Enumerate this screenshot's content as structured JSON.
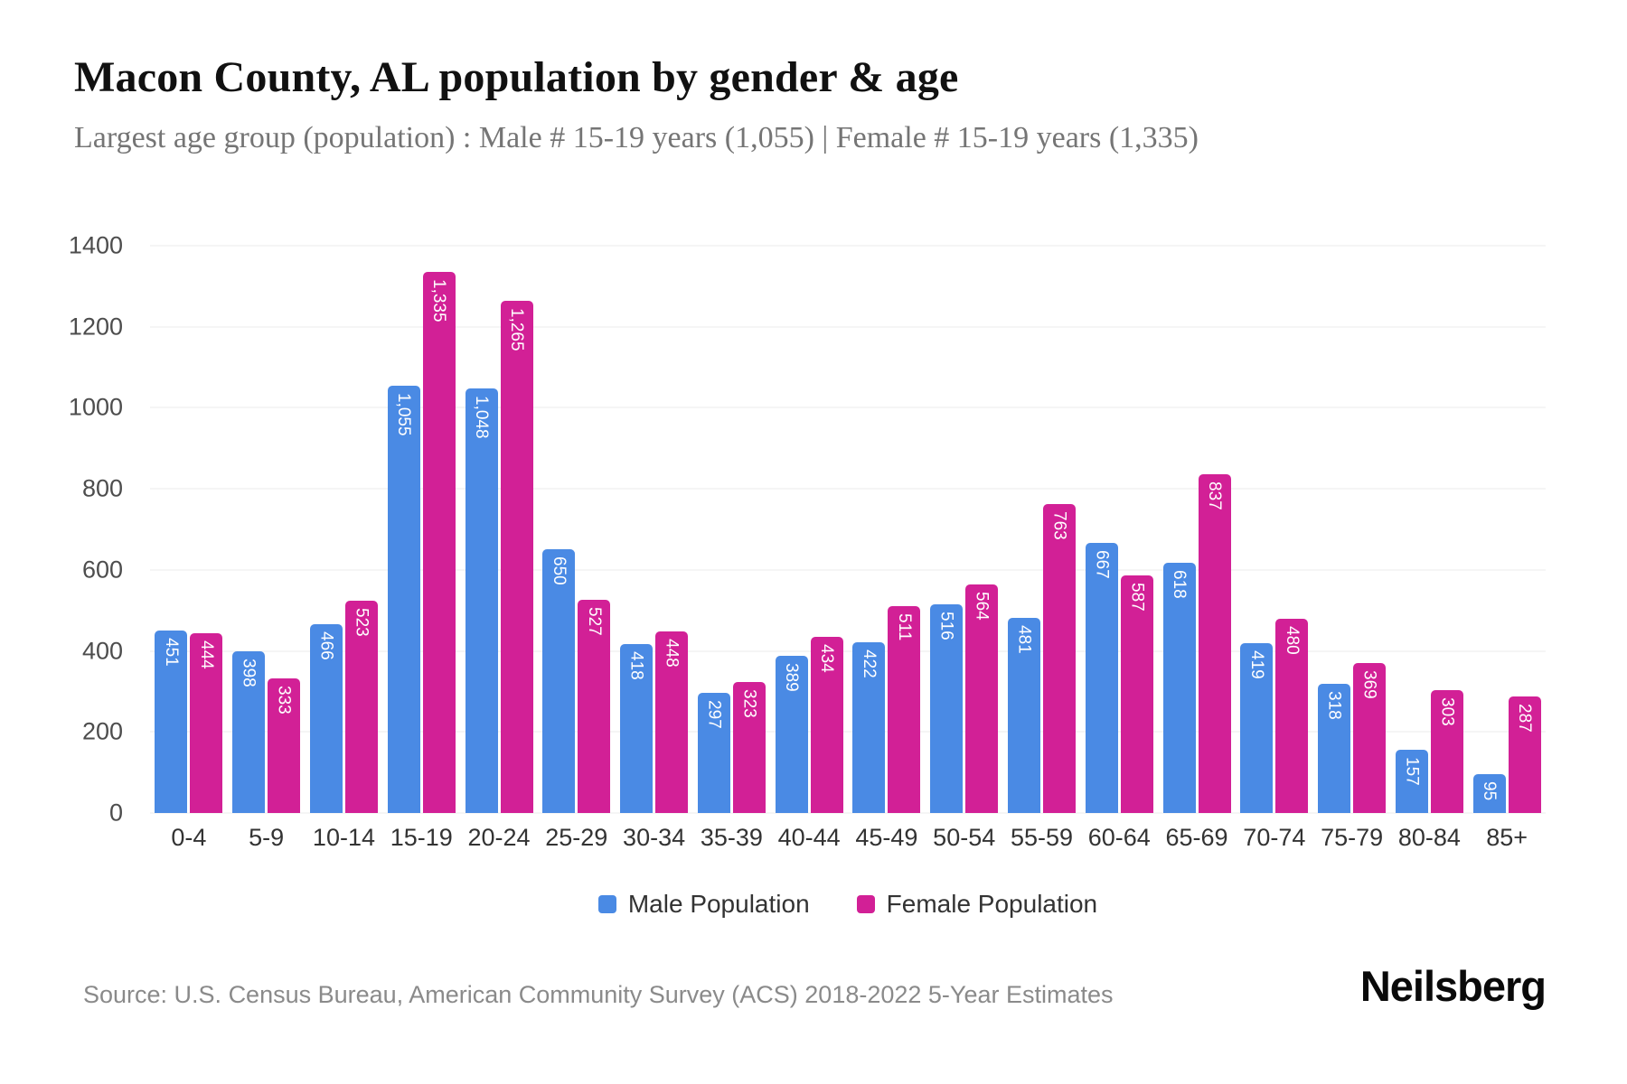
{
  "title": "Macon County, AL population by gender & age",
  "subtitle": "Largest age group (population) : Male # 15-19 years (1,055) | Female # 15-19 years (1,335)",
  "source": "Source: U.S. Census Bureau, American Community Survey (ACS) 2018-2022 5-Year Estimates",
  "brand": "Neilsberg",
  "chart_data": {
    "type": "bar",
    "title": "Macon County, AL population by gender & age",
    "categories": [
      "0-4",
      "5-9",
      "10-14",
      "15-19",
      "20-24",
      "25-29",
      "30-34",
      "35-39",
      "40-44",
      "45-49",
      "50-54",
      "55-59",
      "60-64",
      "65-69",
      "70-74",
      "75-79",
      "80-84",
      "85+"
    ],
    "series": [
      {
        "name": "Male Population",
        "color": "#4a8ae4",
        "values": [
          451,
          398,
          466,
          1055,
          1048,
          650,
          418,
          297,
          389,
          422,
          516,
          481,
          667,
          618,
          419,
          318,
          157,
          95
        ]
      },
      {
        "name": "Female Population",
        "color": "#d22096",
        "values": [
          444,
          333,
          523,
          1335,
          1265,
          527,
          448,
          323,
          434,
          511,
          564,
          763,
          587,
          837,
          480,
          369,
          303,
          287
        ]
      }
    ],
    "xlabel": "",
    "ylabel": "",
    "ylim": [
      0,
      1400
    ],
    "yticks": [
      0,
      200,
      400,
      600,
      800,
      1000,
      1200,
      1400
    ],
    "grid": true,
    "legend_position": "bottom",
    "bar_value_labels": "inside-top, rotated 90deg, white"
  }
}
